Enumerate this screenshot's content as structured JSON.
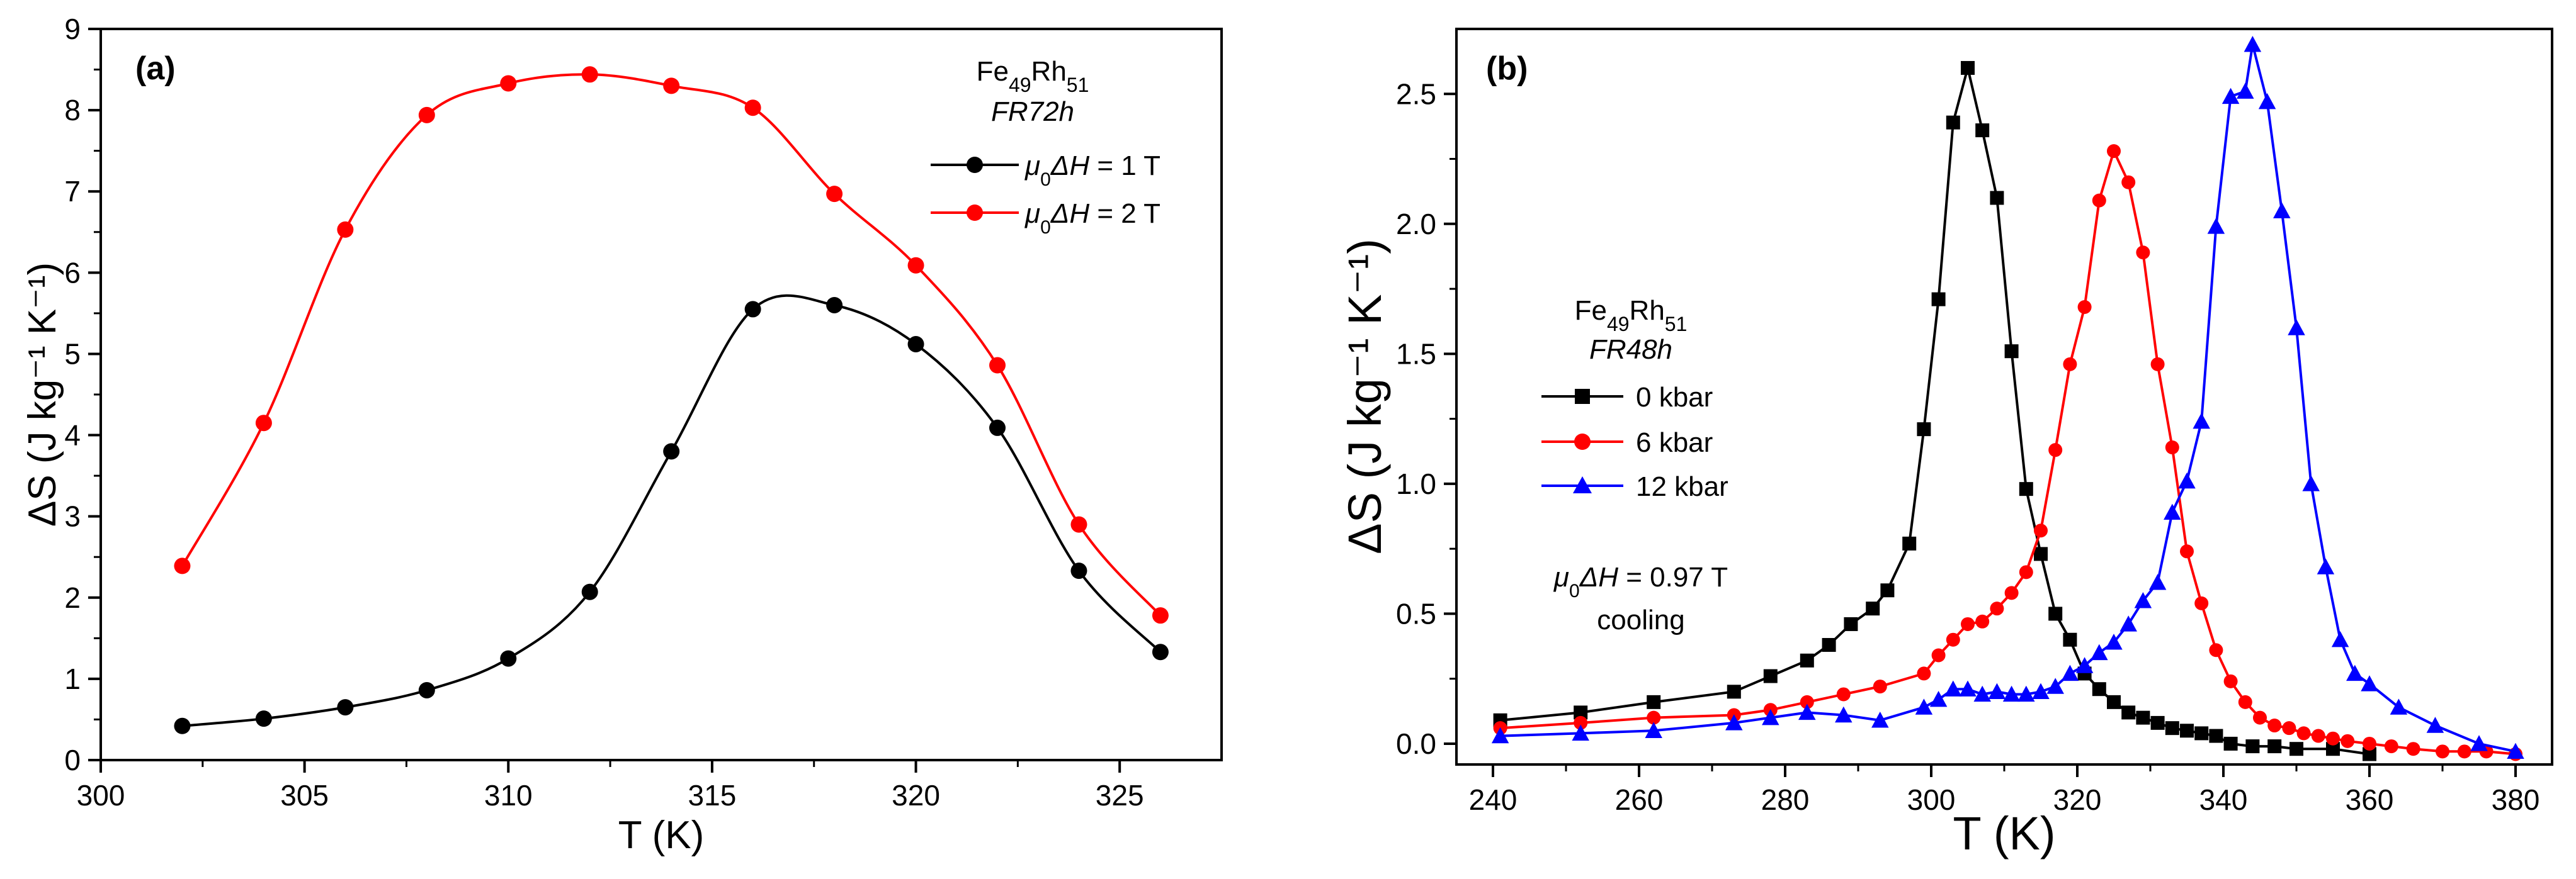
{
  "chart_data": [
    {
      "type": "line",
      "panel_label": "(a)",
      "title": "",
      "xlabel": "T (K)",
      "ylabel": "ΔS (J kg⁻¹ K⁻¹)",
      "xlim": [
        300,
        327.5
      ],
      "ylim": [
        0,
        9
      ],
      "xticks": [
        300,
        305,
        310,
        315,
        320,
        325
      ],
      "yticks": [
        0,
        1,
        2,
        3,
        4,
        5,
        6,
        7,
        8,
        9
      ],
      "legend": {
        "position": "top-right",
        "sample": "Fe49Rh51",
        "sample_base": "Fe",
        "sample_sub1": "49",
        "sample_mid": "Rh",
        "sample_sub2": "51",
        "sample_id": "FR72h",
        "field_symbol": "μ",
        "field_sub": "0",
        "field_delta": "ΔH"
      },
      "series": [
        {
          "name": "μ0ΔH = 1 T",
          "label_value": " = 1 T",
          "color": "#000000",
          "marker": "circle",
          "x": [
            302,
            304,
            306,
            308,
            310,
            312,
            314,
            316,
            318,
            320,
            322,
            324,
            326
          ],
          "y": [
            0.42,
            0.51,
            0.65,
            0.86,
            1.25,
            2.07,
            3.8,
            5.55,
            5.6,
            5.12,
            4.09,
            2.33,
            1.33
          ]
        },
        {
          "name": "μ0ΔH = 2 T",
          "label_value": " = 2 T",
          "color": "#ff0000",
          "marker": "circle",
          "x": [
            302,
            304,
            306,
            308,
            310,
            312,
            314,
            316,
            318,
            320,
            322,
            324,
            326
          ],
          "y": [
            2.39,
            4.15,
            6.53,
            7.94,
            8.33,
            8.44,
            8.3,
            8.03,
            6.97,
            6.09,
            4.86,
            2.9,
            1.78
          ]
        }
      ]
    },
    {
      "type": "line",
      "panel_label": "(b)",
      "title": "",
      "xlabel": "T (K)",
      "ylabel": "ΔS (J kg⁻¹ K⁻¹)",
      "xlim": [
        235,
        385
      ],
      "ylim": [
        -0.08,
        2.75
      ],
      "xticks": [
        240,
        260,
        280,
        300,
        320,
        340,
        360,
        380
      ],
      "yticks": [
        0.0,
        0.5,
        1.0,
        1.5,
        2.0,
        2.5
      ],
      "ytick_labels": [
        "0.0",
        "0.5",
        "1.0",
        "1.5",
        "2.0",
        "2.5"
      ],
      "legend": {
        "position": "center-left",
        "sample": "Fe49Rh51",
        "sample_base": "Fe",
        "sample_sub1": "49",
        "sample_mid": "Rh",
        "sample_sub2": "51",
        "sample_id": "FR48h"
      },
      "annotations": {
        "field_symbol": "μ",
        "field_sub": "0",
        "field_delta": "ΔH",
        "field_value": " = 0.97 T",
        "mode": "cooling"
      },
      "series": [
        {
          "name": "0 kbar",
          "color": "#000000",
          "marker": "square",
          "x": [
            241,
            252,
            262,
            273,
            278,
            283,
            286,
            289,
            292,
            294,
            297,
            299,
            301,
            303,
            305,
            307,
            309,
            311,
            313,
            315,
            317,
            319,
            321,
            323,
            325,
            327,
            329,
            331,
            333,
            335,
            337,
            339,
            341,
            344,
            347,
            350,
            355,
            360
          ],
          "y": [
            0.09,
            0.12,
            0.16,
            0.2,
            0.26,
            0.32,
            0.38,
            0.46,
            0.52,
            0.59,
            0.77,
            1.21,
            1.71,
            2.39,
            2.6,
            2.36,
            2.1,
            1.51,
            0.98,
            0.73,
            0.5,
            0.4,
            0.27,
            0.21,
            0.16,
            0.12,
            0.1,
            0.08,
            0.06,
            0.05,
            0.04,
            0.03,
            0.0,
            -0.01,
            -0.01,
            -0.02,
            -0.02,
            -0.04
          ]
        },
        {
          "name": "6 kbar",
          "color": "#ff0000",
          "marker": "circle",
          "x": [
            241,
            252,
            262,
            273,
            278,
            283,
            288,
            293,
            299,
            301,
            303,
            305,
            307,
            309,
            311,
            313,
            315,
            317,
            319,
            321,
            323,
            325,
            327,
            329,
            331,
            333,
            335,
            337,
            339,
            341,
            343,
            345,
            347,
            349,
            351,
            353,
            355,
            357,
            360,
            363,
            366,
            370,
            373,
            376,
            380
          ],
          "y": [
            0.06,
            0.08,
            0.1,
            0.11,
            0.13,
            0.16,
            0.19,
            0.22,
            0.27,
            0.34,
            0.4,
            0.46,
            0.47,
            0.52,
            0.58,
            0.66,
            0.82,
            1.13,
            1.46,
            1.68,
            2.09,
            2.28,
            2.16,
            1.89,
            1.46,
            1.14,
            0.74,
            0.54,
            0.36,
            0.24,
            0.16,
            0.1,
            0.07,
            0.06,
            0.04,
            0.03,
            0.02,
            0.01,
            0.0,
            -0.01,
            -0.02,
            -0.03,
            -0.03,
            -0.03,
            -0.04
          ]
        },
        {
          "name": "12 kbar",
          "color": "#0000ff",
          "marker": "triangle",
          "x": [
            241,
            252,
            262,
            273,
            278,
            283,
            288,
            293,
            299,
            301,
            303,
            305,
            307,
            309,
            311,
            313,
            315,
            317,
            319,
            321,
            323,
            325,
            327,
            329,
            331,
            333,
            335,
            337,
            339,
            341,
            343,
            344,
            346,
            348,
            350,
            352,
            354,
            356,
            358,
            360,
            364,
            369,
            375,
            380
          ],
          "y": [
            0.03,
            0.04,
            0.05,
            0.08,
            0.1,
            0.12,
            0.11,
            0.09,
            0.14,
            0.17,
            0.21,
            0.21,
            0.19,
            0.2,
            0.19,
            0.19,
            0.2,
            0.22,
            0.27,
            0.3,
            0.35,
            0.39,
            0.46,
            0.55,
            0.62,
            0.89,
            1.01,
            1.24,
            1.99,
            2.49,
            2.51,
            2.69,
            2.47,
            2.05,
            1.6,
            1.0,
            0.68,
            0.4,
            0.27,
            0.23,
            0.14,
            0.07,
            0.0,
            -0.03
          ]
        }
      ]
    }
  ]
}
